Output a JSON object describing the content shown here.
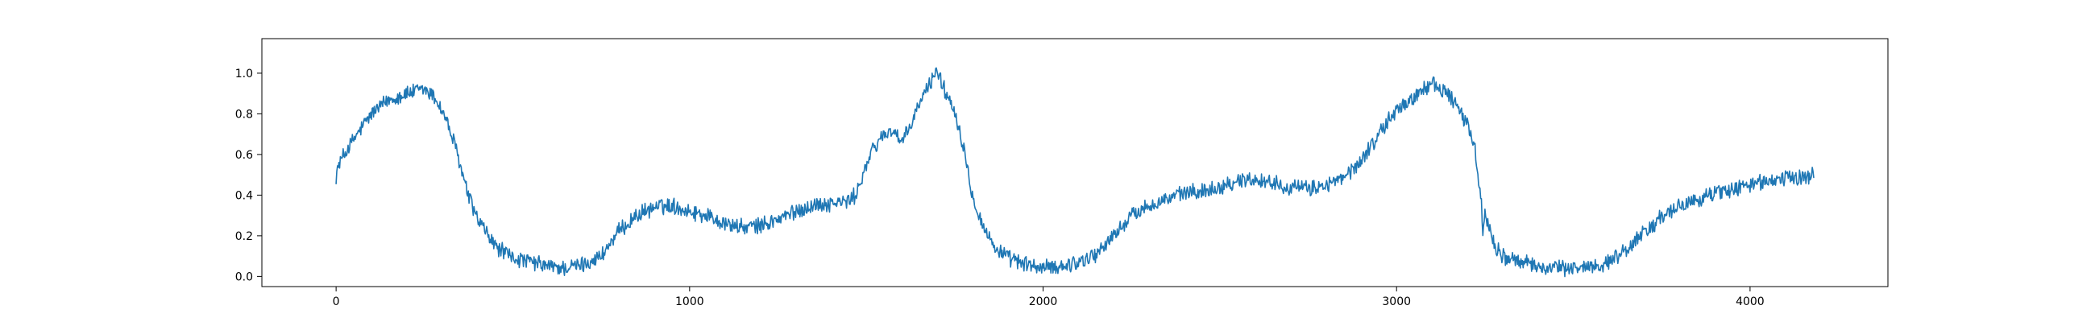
{
  "chart_data": {
    "type": "line",
    "title": "",
    "xlabel": "",
    "ylabel": "",
    "xlim": [
      -210,
      4390
    ],
    "ylim": [
      -0.05,
      1.17
    ],
    "grid": false,
    "legend": "none",
    "x_ticks": [
      0,
      1000,
      2000,
      3000,
      4000
    ],
    "x_tick_labels": [
      "0",
      "1000",
      "2000",
      "3000",
      "4000"
    ],
    "y_ticks": [
      0.0,
      0.2,
      0.4,
      0.6,
      0.8,
      1.0
    ],
    "y_tick_labels": [
      "0.0",
      "0.2",
      "0.4",
      "0.6",
      "0.8",
      "1.0"
    ],
    "series": [
      {
        "color": "#1f77b4",
        "noise_amplitude": 0.035,
        "x": [
          0,
          10,
          30,
          60,
          100,
          150,
          200,
          250,
          280,
          310,
          340,
          370,
          400,
          450,
          500,
          550,
          600,
          650,
          700,
          750,
          800,
          850,
          900,
          950,
          1000,
          1050,
          1100,
          1150,
          1200,
          1250,
          1300,
          1350,
          1400,
          1450,
          1470,
          1490,
          1520,
          1550,
          1580,
          1600,
          1620,
          1650,
          1680,
          1700,
          1720,
          1750,
          1780,
          1800,
          1830,
          1860,
          1900,
          1950,
          2000,
          2050,
          2100,
          2150,
          2200,
          2250,
          2300,
          2350,
          2400,
          2450,
          2500,
          2550,
          2600,
          2650,
          2700,
          2750,
          2800,
          2850,
          2900,
          2950,
          3000,
          3050,
          3080,
          3100,
          3120,
          3150,
          3180,
          3200,
          3220,
          3230,
          3240,
          3245,
          3250,
          3260,
          3280,
          3300,
          3350,
          3400,
          3450,
          3500,
          3550,
          3600,
          3650,
          3700,
          3750,
          3800,
          3850,
          3900,
          3950,
          4000,
          4050,
          4100,
          4150,
          4180
        ],
        "y": [
          0.5,
          0.56,
          0.62,
          0.7,
          0.8,
          0.87,
          0.9,
          0.92,
          0.88,
          0.78,
          0.62,
          0.42,
          0.28,
          0.15,
          0.09,
          0.07,
          0.05,
          0.04,
          0.06,
          0.1,
          0.22,
          0.3,
          0.34,
          0.35,
          0.32,
          0.3,
          0.26,
          0.24,
          0.25,
          0.28,
          0.32,
          0.35,
          0.36,
          0.37,
          0.4,
          0.5,
          0.63,
          0.7,
          0.72,
          0.65,
          0.72,
          0.85,
          0.95,
          1.02,
          0.92,
          0.82,
          0.6,
          0.4,
          0.25,
          0.15,
          0.09,
          0.06,
          0.04,
          0.05,
          0.07,
          0.11,
          0.2,
          0.3,
          0.35,
          0.38,
          0.41,
          0.42,
          0.44,
          0.47,
          0.48,
          0.46,
          0.44,
          0.43,
          0.45,
          0.48,
          0.57,
          0.7,
          0.82,
          0.88,
          0.93,
          0.95,
          0.92,
          0.9,
          0.8,
          0.75,
          0.65,
          0.5,
          0.35,
          0.2,
          0.32,
          0.25,
          0.15,
          0.1,
          0.07,
          0.05,
          0.04,
          0.04,
          0.05,
          0.07,
          0.13,
          0.22,
          0.29,
          0.34,
          0.38,
          0.41,
          0.43,
          0.45,
          0.47,
          0.48,
          0.49,
          0.5
        ]
      }
    ]
  }
}
